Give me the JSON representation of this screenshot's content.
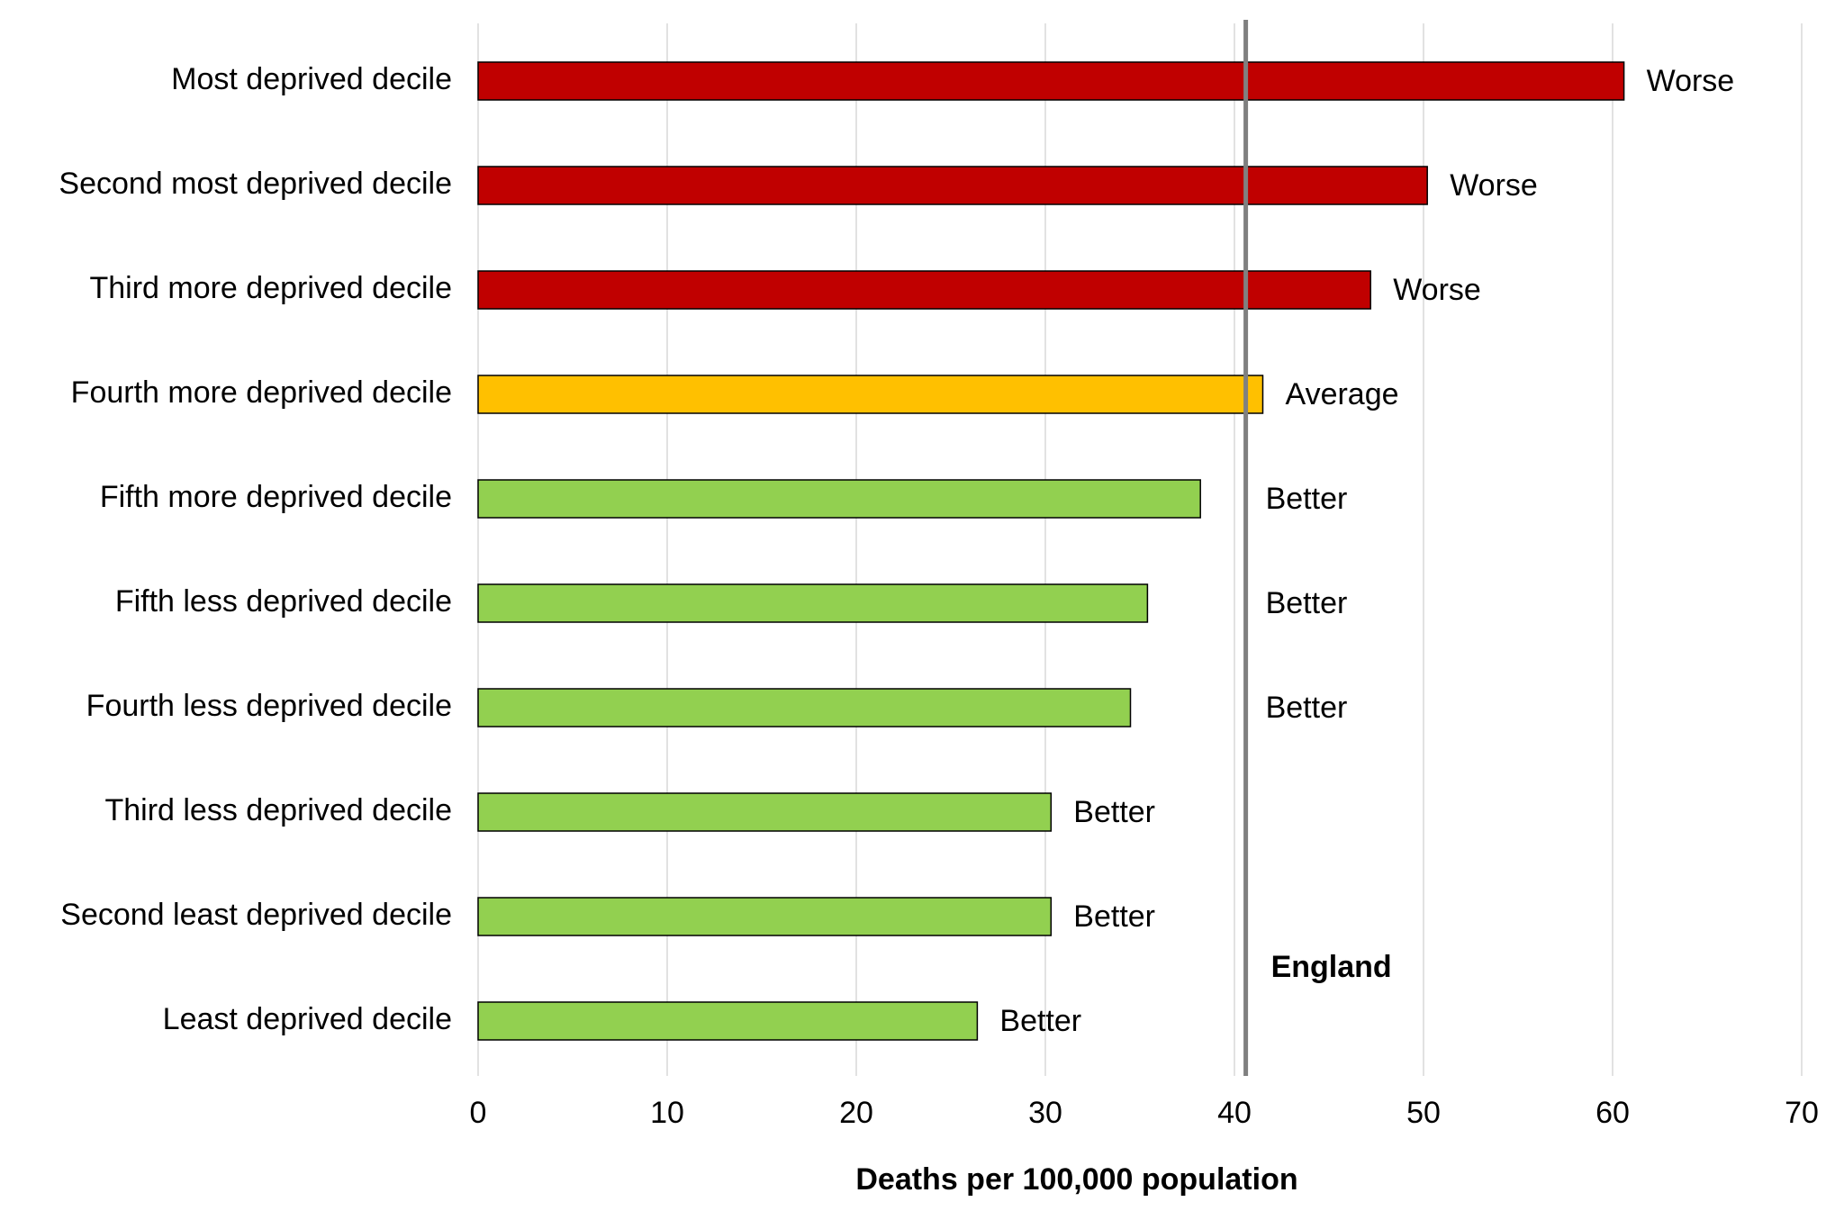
{
  "chart_data": {
    "type": "bar",
    "orientation": "horizontal",
    "x_label": "Deaths per 100,000 population",
    "categories": [
      "Most deprived decile",
      "Second most deprived decile",
      "Third more deprived decile",
      "Fourth more deprived decile",
      "Fifth more deprived decile",
      "Fifth less deprived decile",
      "Fourth less deprived decile",
      "Third less deprived decile",
      "Second least deprived decile",
      "Least deprived decile"
    ],
    "values": [
      60.6,
      50.2,
      47.2,
      41.5,
      38.2,
      35.4,
      34.5,
      30.3,
      30.3,
      26.4
    ],
    "labels": [
      "Worse",
      "Worse",
      "Worse",
      "Average",
      "Better",
      "Better",
      "Better",
      "Better",
      "Better",
      "Better"
    ],
    "colors": [
      "#c00000",
      "#c00000",
      "#c00000",
      "#ffc000",
      "#92d050",
      "#92d050",
      "#92d050",
      "#92d050",
      "#92d050",
      "#92d050"
    ],
    "xlim": [
      0,
      70
    ],
    "xticks": [
      0,
      10,
      20,
      30,
      40,
      50,
      60,
      70
    ],
    "grid": true,
    "reference_line": {
      "label": "England",
      "value": 40.6,
      "color": "#808080"
    }
  }
}
